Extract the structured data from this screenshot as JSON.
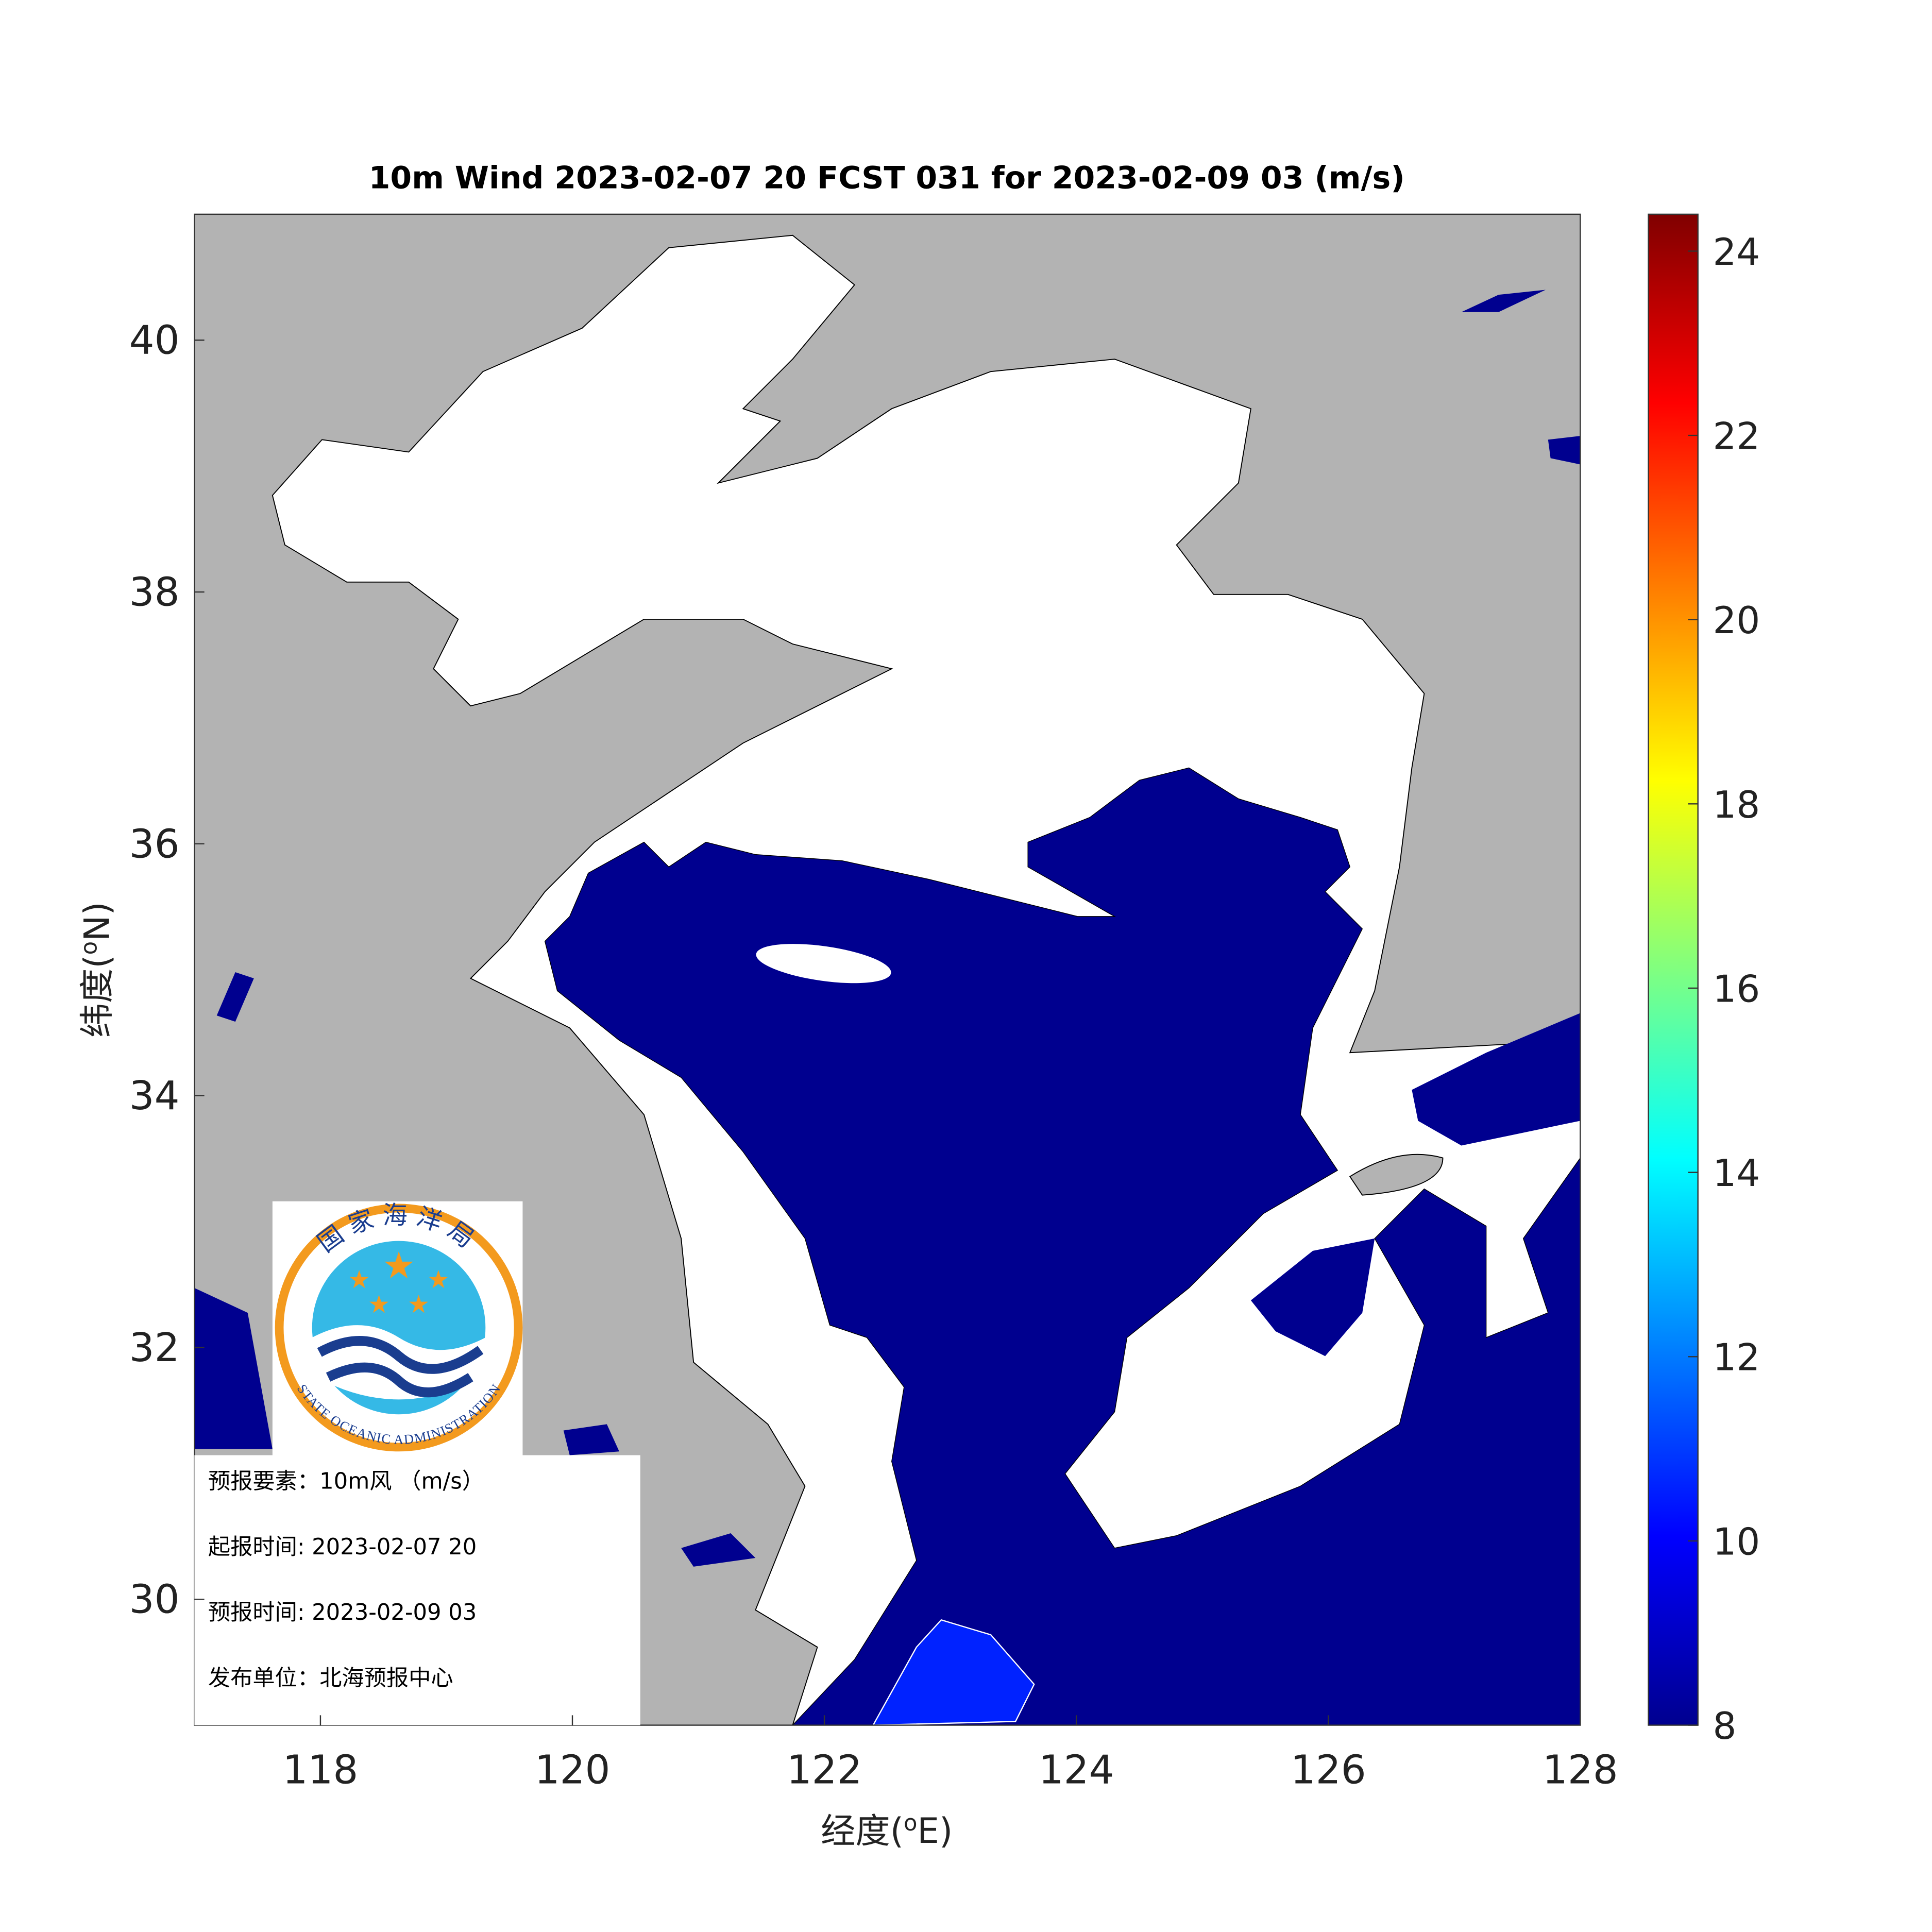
{
  "title": "10m Wind 2023-02-07 20 FCST 031 for 2023-02-09 03 (m/s)",
  "map": {
    "xlim": [
      117,
      128
    ],
    "ylim": [
      29,
      41
    ],
    "xticks": [
      118,
      120,
      122,
      124,
      126,
      128
    ],
    "yticks": [
      30,
      32,
      34,
      36,
      38,
      40
    ],
    "xlabel": {
      "text": "经度(",
      "sup": "o",
      "unit": "E)"
    },
    "ylabel": {
      "text": "纬度(",
      "sup": "o",
      "unit": "N)"
    },
    "land_color": "#b3b3b3",
    "sea_color": "#ffffff"
  },
  "colorbar": {
    "lim": [
      8,
      24.4
    ],
    "ticks": [
      8,
      10,
      12,
      14,
      16,
      18,
      20,
      22,
      24
    ],
    "colors": [
      "#00008f",
      "#0000ff",
      "#0080ff",
      "#00ffff",
      "#80ff80",
      "#ffff00",
      "#ff8000",
      "#ff0000",
      "#800000"
    ]
  },
  "logo": {
    "name_cn": "国家海洋局",
    "name_en": "STATE OCEANIC ADMINISTRATION"
  },
  "info": [
    "预报要素：10m风 （m/s）",
    "起报时间: 2023-02-07 20",
    "预报时间: 2023-02-09 03",
    "发布单位：北海预报中心"
  ]
}
